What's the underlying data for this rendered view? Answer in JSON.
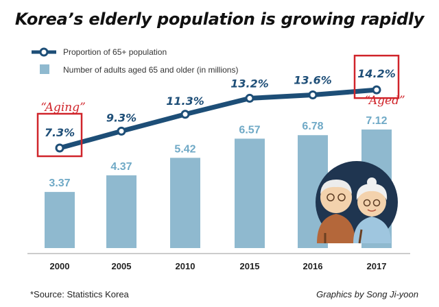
{
  "title": "Korea’s elderly population is growing rapidly",
  "legend": {
    "line_label": "Proportion of 65+ population",
    "bar_label": "Number of adults aged 65 and older (in millions)"
  },
  "annotations": {
    "aging": "“Aging”",
    "aged": "“Aged”"
  },
  "source": "*Source: Statistics Korea",
  "credit": "Graphics by Song Ji-yoon",
  "colors": {
    "bar": "#8fb9cf",
    "line": "#1d4e77",
    "highlight": "#d0242a",
    "bar_label": "#6fa9c6",
    "pct_label": "#1f4f78"
  },
  "chart_data": {
    "type": "bar",
    "categories": [
      "2000",
      "2005",
      "2010",
      "2015",
      "2016",
      "2017"
    ],
    "series": [
      {
        "name": "Number of adults aged 65 and older (in millions)",
        "type": "bar",
        "values": [
          3.37,
          4.37,
          5.42,
          6.57,
          6.78,
          7.12
        ],
        "labels": [
          "3.37",
          "4.37",
          "5.42",
          "6.57",
          "6.78",
          "7.12"
        ]
      },
      {
        "name": "Proportion of 65+ population",
        "type": "line",
        "values": [
          7.3,
          9.3,
          11.3,
          13.2,
          13.6,
          14.2
        ],
        "labels": [
          "7.3%",
          "9.3%",
          "11.3%",
          "13.2%",
          "13.6%",
          "14.2%"
        ]
      }
    ],
    "highlighted_points": [
      0,
      5
    ],
    "grid": false,
    "legend_position": "top-left"
  }
}
